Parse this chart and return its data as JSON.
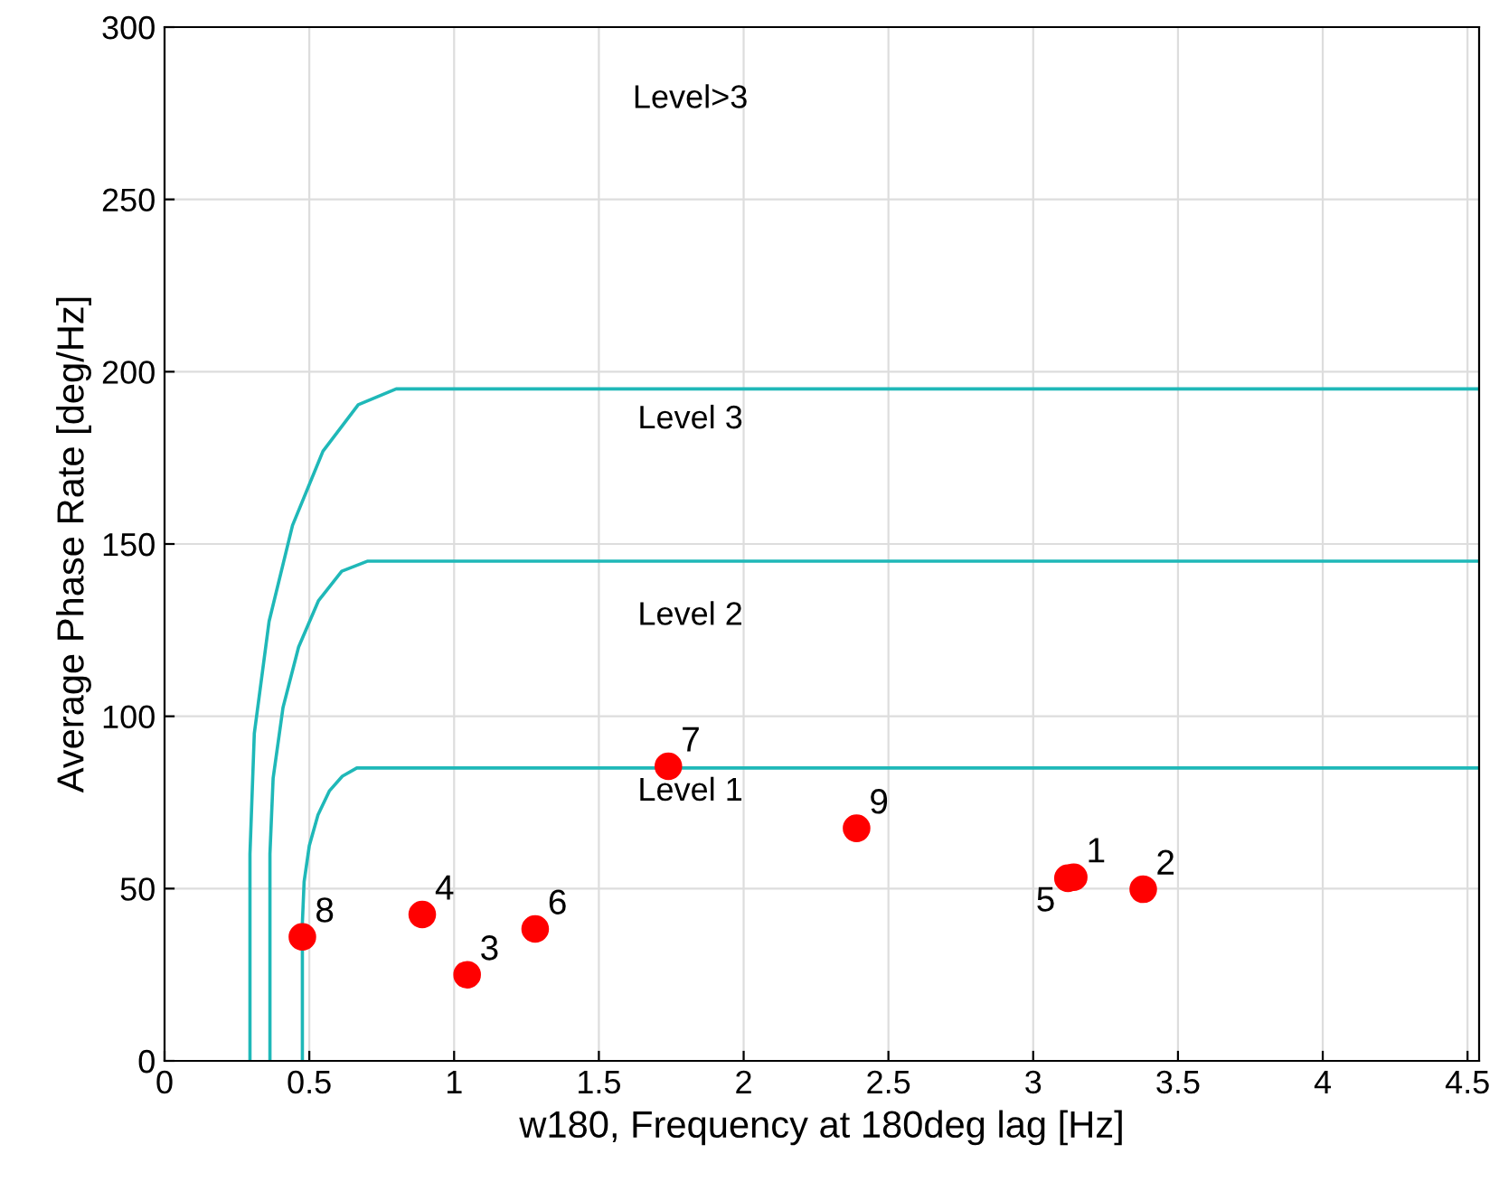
{
  "chart_data": {
    "type": "scatter",
    "xlabel": "w180, Frequency at 180deg lag [Hz]",
    "ylabel": "Average Phase Rate [deg/Hz]",
    "xlim": [
      0,
      4.54
    ],
    "ylim": [
      0,
      300
    ],
    "xticks": [
      0,
      0.5,
      1,
      1.5,
      2,
      2.5,
      3,
      3.5,
      4,
      4.5
    ],
    "yticks": [
      0,
      50,
      100,
      150,
      200,
      250,
      300
    ],
    "grid": true,
    "legend": false,
    "series": [
      {
        "type": "line",
        "color": "#1fb8b8",
        "x": [
          0.295,
          0.295,
          0.31,
          0.361,
          0.442,
          0.547,
          0.669,
          0.8,
          4.54
        ],
        "values": [
          0,
          60,
          95,
          127.5,
          155.4,
          176.9,
          190.4,
          195,
          195
        ]
      },
      {
        "type": "line",
        "color": "#1fb8b8",
        "x": [
          0.364,
          0.364,
          0.375,
          0.409,
          0.463,
          0.532,
          0.612,
          0.7,
          4.54
        ],
        "values": [
          0,
          60,
          82,
          102.5,
          120.1,
          133.6,
          142.1,
          145,
          145
        ]
      },
      {
        "type": "line",
        "color": "#1fb8b8",
        "x": [
          0.476,
          0.476,
          0.482,
          0.5,
          0.53,
          0.569,
          0.614,
          0.664,
          4.54
        ],
        "values": [
          0,
          40,
          52,
          62.5,
          71.4,
          78.3,
          82.6,
          85,
          85
        ]
      },
      {
        "color": "#ff0000",
        "marker": "circle",
        "x": [
          3.14,
          3.38,
          1.045,
          0.89,
          3.12,
          1.28,
          1.74,
          0.476,
          2.39
        ],
        "values": [
          53.3,
          49.8,
          25,
          42.5,
          53,
          38.3,
          85.5,
          36,
          67.5
        ]
      }
    ],
    "annotations": [
      "Level>3",
      "Level 3",
      "Level 2",
      "Level 1",
      {
        "text": "1",
        "x": 3.14,
        "y": 53.3
      },
      {
        "text": "2",
        "x": 3.38,
        "y": 49.8
      },
      {
        "text": "3",
        "x": 1.045,
        "y": 25
      },
      {
        "text": "4",
        "x": 0.89,
        "y": 42.5
      },
      {
        "text": "5",
        "x": 3.12,
        "y": 53
      },
      {
        "text": "6",
        "x": 1.28,
        "y": 38.3
      },
      {
        "text": "7",
        "x": 1.74,
        "y": 85.5
      },
      {
        "text": "8",
        "x": 0.476,
        "y": 36
      },
      {
        "text": "9",
        "x": 2.39,
        "y": 67.5
      }
    ]
  }
}
